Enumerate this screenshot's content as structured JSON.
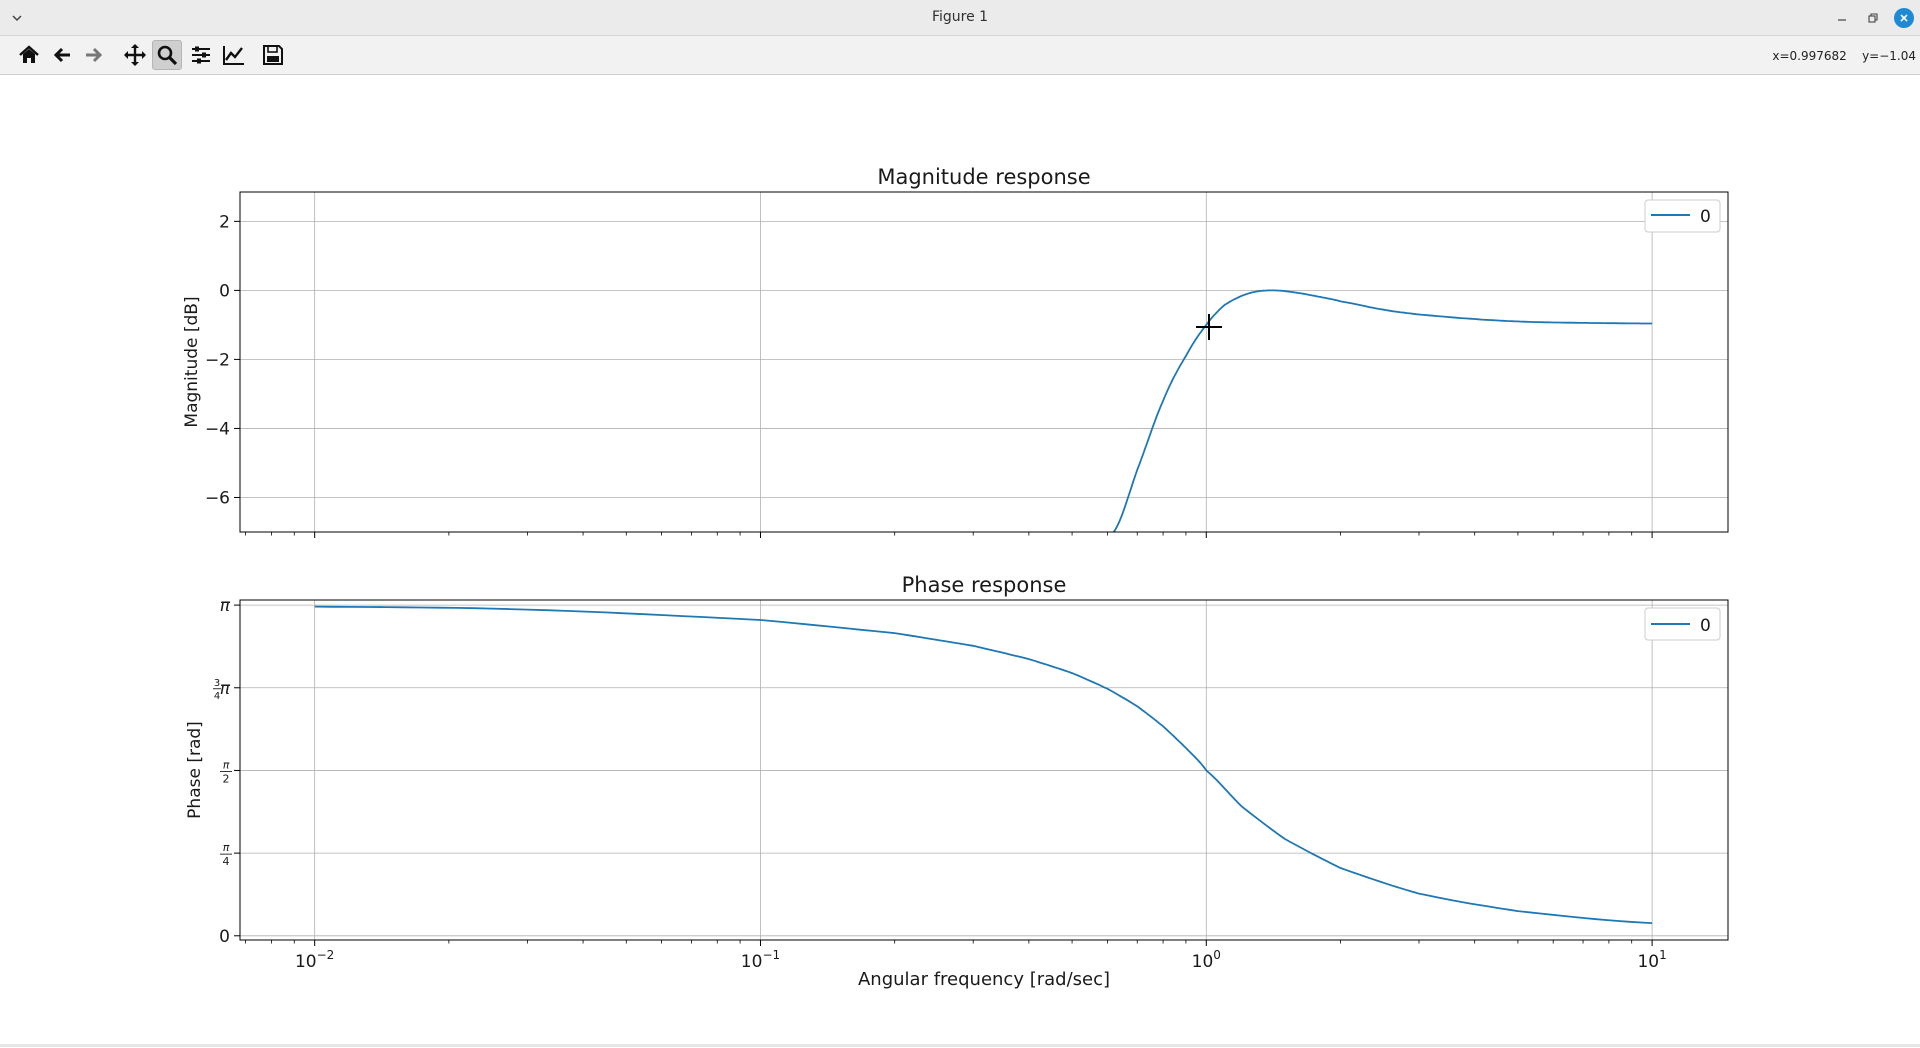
{
  "window": {
    "title": "Figure 1"
  },
  "toolbar": {
    "tools": [
      {
        "name": "home-icon",
        "label": "Home"
      },
      {
        "name": "back-icon",
        "label": "Back"
      },
      {
        "name": "forward-icon",
        "label": "Forward"
      },
      {
        "name": "pan-icon",
        "label": "Pan"
      },
      {
        "name": "zoom-icon",
        "label": "Zoom",
        "active": true
      },
      {
        "name": "configure-subplots-icon",
        "label": "Subplots"
      },
      {
        "name": "edit-axis-icon",
        "label": "Customize"
      },
      {
        "name": "save-icon",
        "label": "Save"
      }
    ],
    "coords_x": "x=0.997682",
    "coords_y": "y=−1.04"
  },
  "colors": {
    "line": "#1f77b4",
    "grid": "#b0b0b0",
    "close": "#1e8ad6"
  },
  "chart_data": [
    {
      "type": "line",
      "title": "Magnitude response",
      "ylabel": "Magnitude [dB]",
      "xlabel": "",
      "xscale": "log",
      "xlim": [
        0.0068,
        14.8
      ],
      "ylim": [
        -7.0,
        2.85
      ],
      "yticks": [
        2,
        0,
        -2,
        -4,
        -6
      ],
      "ytick_labels": [
        "2",
        "0",
        "−2",
        "−4",
        "−6"
      ],
      "grid": true,
      "legend": {
        "placement": "top-right",
        "entries": [
          "0"
        ]
      },
      "series": [
        {
          "name": "0",
          "x": [
            0.62,
            0.7,
            0.8,
            0.9,
            1.0,
            1.1,
            1.25,
            1.41,
            1.6,
            1.8,
            2.0,
            2.5,
            3.0,
            4.0,
            5.0,
            6.0,
            8.0,
            10.0
          ],
          "y": [
            -7.0,
            -5.2,
            -3.2,
            -1.9,
            -1.0,
            -0.42,
            -0.08,
            0.0,
            -0.07,
            -0.19,
            -0.32,
            -0.56,
            -0.7,
            -0.83,
            -0.9,
            -0.93,
            -0.95,
            -0.96
          ]
        }
      ]
    },
    {
      "type": "line",
      "title": "Phase response",
      "ylabel": "Phase [rad]",
      "xlabel": "Angular frequency [rad/sec]",
      "xscale": "log",
      "xlim": [
        0.0068,
        14.8
      ],
      "ylim": [
        -0.04,
        3.19
      ],
      "yticks": [
        3.1416,
        2.3562,
        1.5708,
        0.7854,
        0
      ],
      "ytick_labels": [
        "π",
        "3/4π",
        "π/2",
        "π/4",
        "0"
      ],
      "xticks": [
        0.01,
        0.1,
        1,
        10
      ],
      "xtick_labels": [
        "10−2",
        "10−1",
        "100",
        "101"
      ],
      "grid": true,
      "legend": {
        "placement": "top-right",
        "entries": [
          "0"
        ]
      },
      "series": [
        {
          "name": "0",
          "x": [
            0.01,
            0.03,
            0.1,
            0.2,
            0.3,
            0.4,
            0.5,
            0.6,
            0.7,
            0.8,
            0.9,
            1.0,
            1.2,
            1.5,
            2.0,
            3.0,
            5.0,
            10.0
          ],
          "y": [
            3.127,
            3.099,
            3.0,
            2.876,
            2.755,
            2.629,
            2.496,
            2.347,
            2.18,
            1.99,
            1.785,
            1.571,
            1.23,
            0.92,
            0.644,
            0.401,
            0.235,
            0.121
          ]
        }
      ]
    }
  ]
}
